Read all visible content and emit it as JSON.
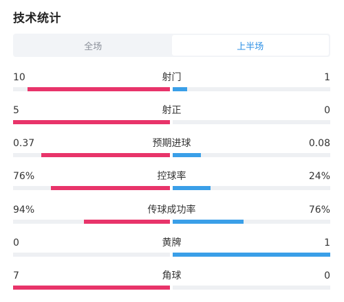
{
  "title": "技术统计",
  "tabs": [
    {
      "label": "全场",
      "active": false
    },
    {
      "label": "上半场",
      "active": true
    }
  ],
  "colors": {
    "home_bar": "#e8346a",
    "away_bar": "#3a9fe8",
    "active_tab": "#2b8fe5"
  },
  "stats": [
    {
      "name": "射门",
      "left": "10",
      "right": "1",
      "left_share": 0.91,
      "right_share": 0.09
    },
    {
      "name": "射正",
      "left": "5",
      "right": "0",
      "left_share": 1.0,
      "right_share": 0.0
    },
    {
      "name": "预期进球",
      "left": "0.37",
      "right": "0.08",
      "left_share": 0.82,
      "right_share": 0.18
    },
    {
      "name": "控球率",
      "left": "76%",
      "right": "24%",
      "left_share": 0.76,
      "right_share": 0.24
    },
    {
      "name": "传球成功率",
      "left": "94%",
      "right": "76%",
      "left_share": 0.55,
      "right_share": 0.45
    },
    {
      "name": "黄牌",
      "left": "0",
      "right": "1",
      "left_share": 0.0,
      "right_share": 1.0
    },
    {
      "name": "角球",
      "left": "7",
      "right": "0",
      "left_share": 1.0,
      "right_share": 0.0
    }
  ]
}
